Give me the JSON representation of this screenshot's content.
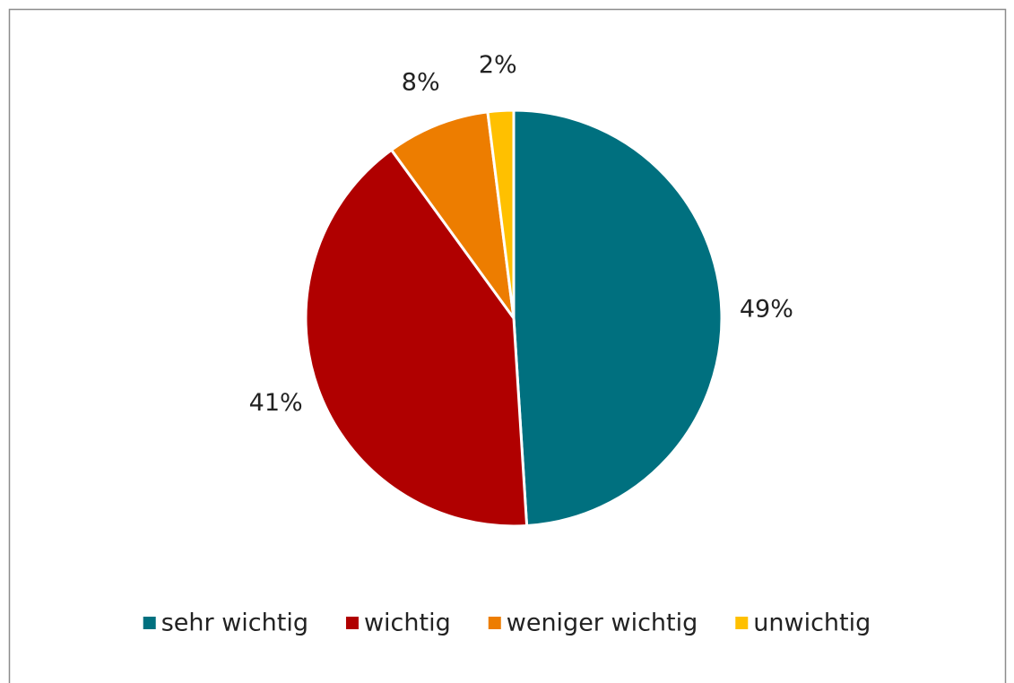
{
  "chart_data": {
    "type": "pie",
    "categories": [
      "sehr wichtig",
      "wichtig",
      "weniger wichtig",
      "unwichtig"
    ],
    "values": [
      49,
      41,
      8,
      2
    ],
    "value_labels": [
      "49%",
      "41%",
      "8%",
      "2%"
    ],
    "colors": [
      "#00707f",
      "#b00000",
      "#ed7d00",
      "#ffc000"
    ],
    "legend": "bottom"
  }
}
